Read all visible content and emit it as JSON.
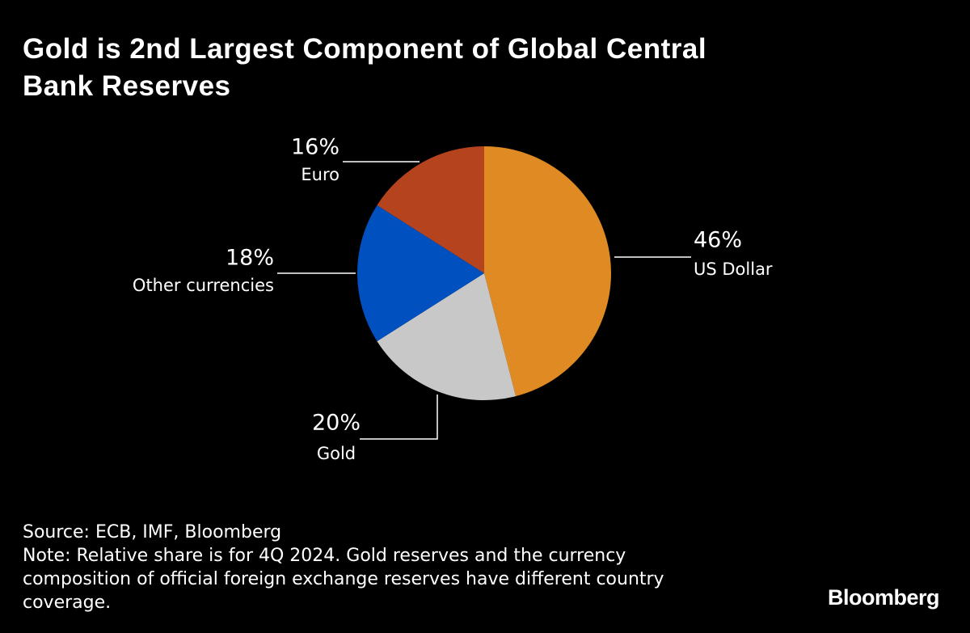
{
  "chart_data": {
    "type": "pie",
    "title": "Gold is 2nd Largest Component of Global Central Bank Reserves",
    "categories": [
      "US Dollar",
      "Gold",
      "Other currencies",
      "Euro"
    ],
    "values": [
      46,
      20,
      18,
      16
    ],
    "value_labels": [
      "46%",
      "20%",
      "18%",
      "16%"
    ],
    "colors": [
      "#e08a24",
      "#c8c8c8",
      "#0050c0",
      "#b5441e"
    ],
    "source": "Source: ECB, IMF, Bloomberg",
    "note": "Note: Relative share is for 4Q 2024. Gold reserves and the currency composition of official foreign exchange reserves have different country coverage.",
    "brand": "Bloomberg"
  }
}
